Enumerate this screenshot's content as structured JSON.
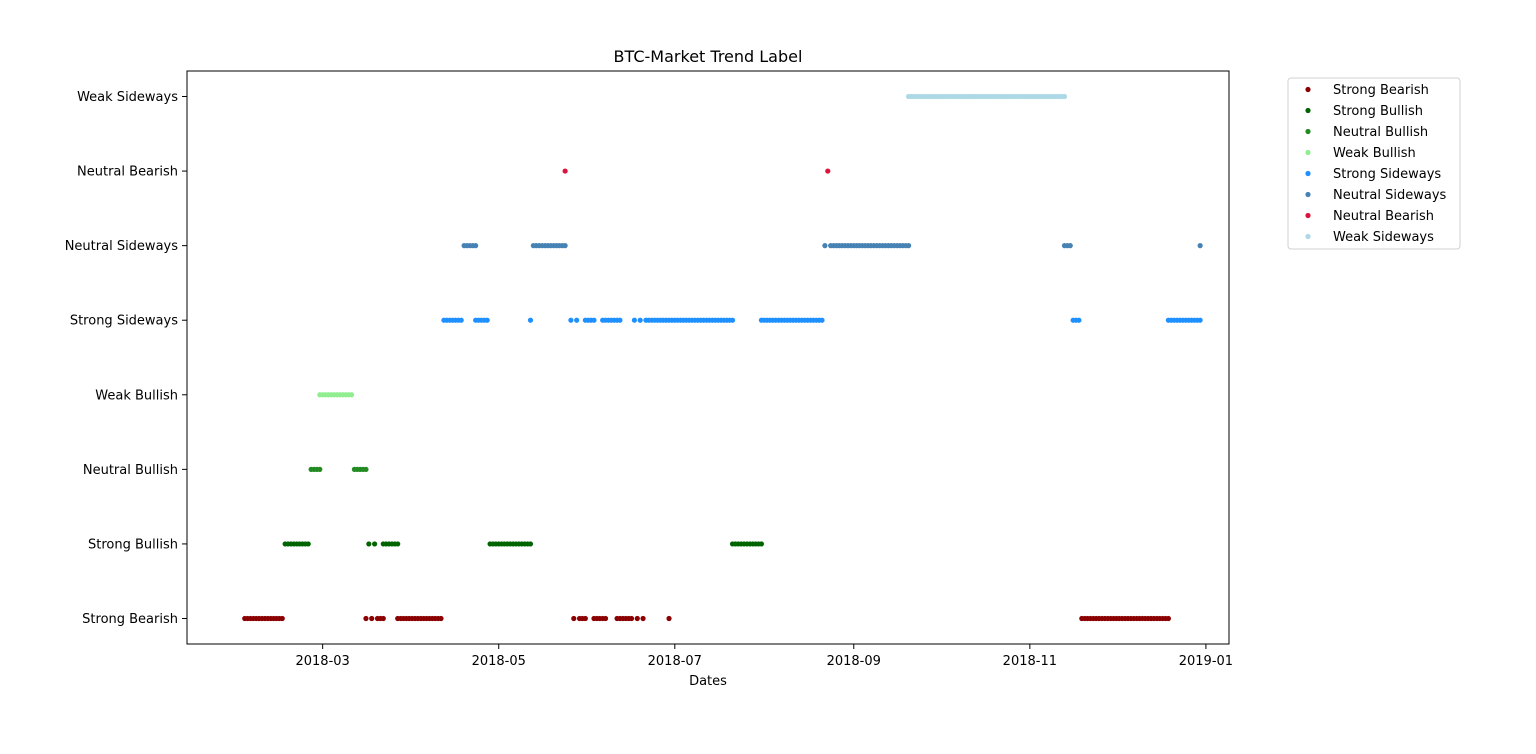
{
  "chart_data": {
    "type": "scatter",
    "title": "BTC-Market Trend Label",
    "xlabel": "Dates",
    "ylabel": "",
    "xlim": [
      "2018-01-13",
      "2019-01-09"
    ],
    "x_ticks": [
      "2018-03",
      "2018-05",
      "2018-07",
      "2018-09",
      "2018-11",
      "2019-01"
    ],
    "categories": [
      "Strong Bearish",
      "Strong Bullish",
      "Neutral Bullish",
      "Weak Bullish",
      "Strong Sideways",
      "Neutral Sideways",
      "Neutral Bearish",
      "Weak Sideways"
    ],
    "grid": false,
    "legend_position": "outside-top-right",
    "series": [
      {
        "name": "Strong Bearish",
        "color": "#8b0000",
        "ranges": [
          [
            "2018-02-02",
            "2018-02-15"
          ],
          [
            "2018-03-16",
            "2018-03-16"
          ],
          [
            "2018-03-18",
            "2018-03-18"
          ],
          [
            "2018-03-20",
            "2018-03-22"
          ],
          [
            "2018-03-27",
            "2018-04-11"
          ],
          [
            "2018-05-27",
            "2018-05-27"
          ],
          [
            "2018-05-29",
            "2018-05-31"
          ],
          [
            "2018-06-03",
            "2018-06-07"
          ],
          [
            "2018-06-11",
            "2018-06-16"
          ],
          [
            "2018-06-18",
            "2018-06-18"
          ],
          [
            "2018-06-20",
            "2018-06-20"
          ],
          [
            "2018-06-29",
            "2018-06-29"
          ],
          [
            "2018-11-19",
            "2018-12-19"
          ]
        ]
      },
      {
        "name": "Strong Bullish",
        "color": "#006400",
        "ranges": [
          [
            "2018-02-16",
            "2018-02-24"
          ],
          [
            "2018-03-17",
            "2018-03-17"
          ],
          [
            "2018-03-19",
            "2018-03-19"
          ],
          [
            "2018-03-22",
            "2018-03-27"
          ],
          [
            "2018-04-28",
            "2018-05-12"
          ],
          [
            "2018-07-21",
            "2018-07-31"
          ]
        ]
      },
      {
        "name": "Neutral Bullish",
        "color": "#228b22",
        "ranges": [
          [
            "2018-02-25",
            "2018-02-28"
          ],
          [
            "2018-03-12",
            "2018-03-16"
          ]
        ]
      },
      {
        "name": "Weak Bullish",
        "color": "#90ee90",
        "ranges": [
          [
            "2018-02-28",
            "2018-03-11"
          ]
        ]
      },
      {
        "name": "Strong Sideways",
        "color": "#1e90ff",
        "ranges": [
          [
            "2018-04-12",
            "2018-04-18"
          ],
          [
            "2018-04-23",
            "2018-04-27"
          ],
          [
            "2018-05-12",
            "2018-05-12"
          ],
          [
            "2018-05-26",
            "2018-05-26"
          ],
          [
            "2018-05-28",
            "2018-05-28"
          ],
          [
            "2018-05-31",
            "2018-06-03"
          ],
          [
            "2018-06-06",
            "2018-06-12"
          ],
          [
            "2018-06-17",
            "2018-06-17"
          ],
          [
            "2018-06-19",
            "2018-06-19"
          ],
          [
            "2018-06-21",
            "2018-06-29"
          ],
          [
            "2018-06-30",
            "2018-07-21"
          ],
          [
            "2018-07-31",
            "2018-08-21"
          ],
          [
            "2018-11-16",
            "2018-11-18"
          ],
          [
            "2018-12-19",
            "2018-12-30"
          ]
        ]
      },
      {
        "name": "Neutral Sideways",
        "color": "#4682b4",
        "ranges": [
          [
            "2018-04-19",
            "2018-04-23"
          ],
          [
            "2018-05-13",
            "2018-05-24"
          ],
          [
            "2018-08-22",
            "2018-08-22"
          ],
          [
            "2018-08-24",
            "2018-09-20"
          ],
          [
            "2018-11-13",
            "2018-11-15"
          ],
          [
            "2018-12-30",
            "2018-12-30"
          ]
        ]
      },
      {
        "name": "Neutral Bearish",
        "color": "#dc143c",
        "ranges": [
          [
            "2018-05-24",
            "2018-05-24"
          ],
          [
            "2018-08-23",
            "2018-08-23"
          ]
        ]
      },
      {
        "name": "Weak Sideways",
        "color": "#add8e6",
        "ranges": [
          [
            "2018-09-20",
            "2018-11-13"
          ]
        ]
      }
    ]
  }
}
